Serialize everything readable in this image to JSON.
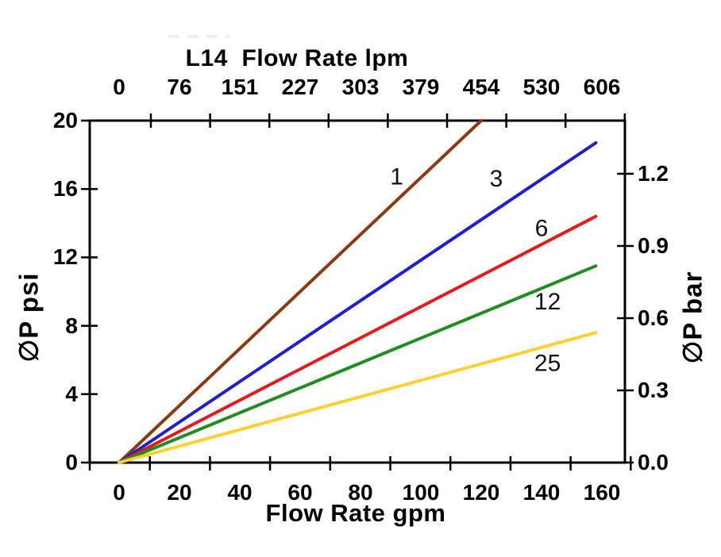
{
  "chart_data": {
    "type": "line",
    "title": "L14  Flow Rate lpm",
    "legend_position": "inline-labels",
    "grid": false,
    "axes": {
      "top": {
        "unit": "lpm",
        "ticks": [
          "0",
          "76",
          "151",
          "227",
          "303",
          "379",
          "454",
          "530",
          "606"
        ]
      },
      "bottom": {
        "label": "Flow Rate gpm",
        "unit": "gpm",
        "range": [
          0,
          160
        ],
        "ticks": [
          "0",
          "20",
          "40",
          "60",
          "80",
          "100",
          "120",
          "140",
          "160"
        ]
      },
      "left": {
        "label": "∅P psi",
        "unit": "psi",
        "range": [
          0,
          20
        ],
        "ticks": [
          "0",
          "4",
          "8",
          "12",
          "16",
          "20"
        ]
      },
      "right": {
        "label": "∅P bar",
        "unit": "bar",
        "range": [
          0,
          1.4
        ],
        "ticks": [
          "0.0",
          "0.3",
          "0.6",
          "0.9",
          "1.2"
        ]
      }
    },
    "axis_color": "#000000",
    "series": [
      {
        "name": "1",
        "color": "#8B3A0F",
        "points_gpm_psi": [
          [
            0,
            0
          ],
          [
            120,
            20
          ]
        ],
        "label_at_gpm_psi": [
          92,
          16.7
        ]
      },
      {
        "name": "3",
        "color": "#1E1ED2",
        "points_gpm_psi": [
          [
            0,
            0
          ],
          [
            158,
            18.7
          ]
        ],
        "label_at_gpm_psi": [
          125,
          16.6
        ]
      },
      {
        "name": "6",
        "color": "#E51A1A",
        "points_gpm_psi": [
          [
            0,
            0
          ],
          [
            158,
            14.4
          ]
        ],
        "label_at_gpm_psi": [
          140,
          13.7
        ]
      },
      {
        "name": "12",
        "color": "#1E8E1E",
        "points_gpm_psi": [
          [
            0,
            0
          ],
          [
            158,
            11.5
          ]
        ],
        "label_at_gpm_psi": [
          142,
          9.4
        ]
      },
      {
        "name": "25",
        "color": "#FFD02E",
        "points_gpm_psi": [
          [
            0,
            0
          ],
          [
            158,
            7.6
          ]
        ],
        "label_at_gpm_psi": [
          142,
          5.8
        ]
      }
    ]
  }
}
